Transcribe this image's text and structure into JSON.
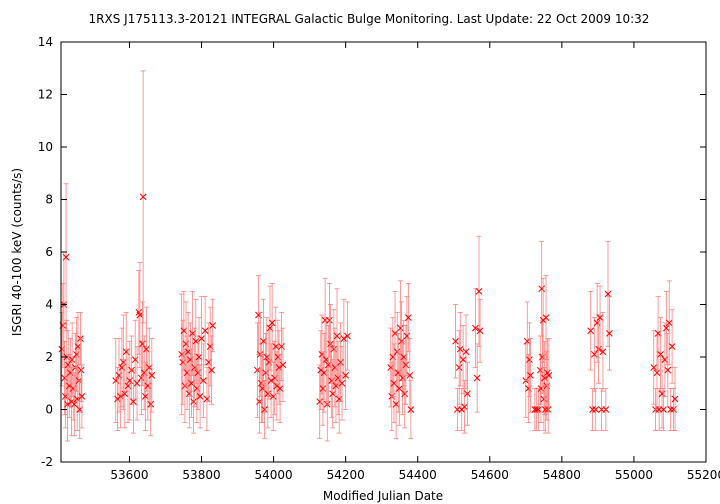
{
  "chart_data": {
    "type": "scatter",
    "title": "1RXS J175113.3-20121   INTEGRAL Galactic Bulge Monitoring.  Last Update: 22 Oct 2009 10:32",
    "xlabel": "Modified Julian Date",
    "ylabel": "ISGRI 40-100 keV (counts/s)",
    "xlim": [
      53410,
      55200
    ],
    "ylim": [
      -2,
      14
    ],
    "xticks": [
      53600,
      53800,
      54000,
      54200,
      54400,
      54600,
      54800,
      55000,
      55200
    ],
    "yticks": [
      -2,
      0,
      2,
      4,
      6,
      8,
      10,
      12,
      14
    ],
    "grid": false,
    "legend": "none",
    "marker": "x",
    "color": "#ff0000",
    "errorbar_color": "#ff8080",
    "series": [
      {
        "points": [
          [
            53412,
            2.3,
            1.4
          ],
          [
            53415,
            3.2,
            1.6
          ],
          [
            53418,
            4.0,
            2.0
          ],
          [
            53420,
            1.2,
            1.4
          ],
          [
            53422,
            0.5,
            1.2
          ],
          [
            53424,
            5.8,
            2.8
          ],
          [
            53426,
            2.0,
            1.4
          ],
          [
            53428,
            0.2,
            1.4
          ],
          [
            53430,
            1.7,
            1.3
          ],
          [
            53433,
            0.9,
            1.2
          ],
          [
            53436,
            1.4,
            1.3
          ],
          [
            53439,
            0.3,
            1.3
          ],
          [
            53441,
            1.9,
            1.4
          ],
          [
            53444,
            0.8,
            1.2
          ],
          [
            53447,
            0.2,
            1.2
          ],
          [
            53450,
            1.6,
            1.3
          ],
          [
            53453,
            2.1,
            1.4
          ],
          [
            53455,
            0.4,
            1.2
          ],
          [
            53457,
            2.4,
            1.3
          ],
          [
            53460,
            1.1,
            1.2
          ],
          [
            53462,
            0.0,
            1.1
          ],
          [
            53464,
            2.7,
            1.0
          ],
          [
            53466,
            1.5,
            1.2
          ],
          [
            53468,
            0.5,
            1.2
          ],
          [
            53562,
            1.1,
            1.6
          ],
          [
            53567,
            0.4,
            1.2
          ],
          [
            53571,
            1.3,
            1.4
          ],
          [
            53575,
            0.5,
            1.2
          ],
          [
            53579,
            1.6,
            1.5
          ],
          [
            53583,
            1.8,
            1.8
          ],
          [
            53587,
            0.6,
            1.3
          ],
          [
            53591,
            2.2,
            1.5
          ],
          [
            53596,
            0.9,
            1.4
          ],
          [
            53601,
            1.1,
            1.5
          ],
          [
            53606,
            1.5,
            1.3
          ],
          [
            53611,
            0.3,
            1.2
          ],
          [
            53616,
            1.9,
            1.5
          ],
          [
            53621,
            1.0,
            1.4
          ],
          [
            53626,
            3.7,
            1.6
          ],
          [
            53629,
            3.6,
            2.0
          ],
          [
            53633,
            1.2,
            1.4
          ],
          [
            53636,
            2.5,
            1.6
          ],
          [
            53638,
            8.1,
            4.8
          ],
          [
            53641,
            1.4,
            1.4
          ],
          [
            53644,
            0.5,
            1.3
          ],
          [
            53647,
            2.3,
            1.6
          ],
          [
            53651,
            0.9,
            1.3
          ],
          [
            53655,
            1.6,
            1.5
          ],
          [
            53659,
            0.2,
            1.2
          ],
          [
            53662,
            1.3,
            1.4
          ],
          [
            53745,
            2.1,
            2.3
          ],
          [
            53748,
            1.8,
            1.6
          ],
          [
            53751,
            3.0,
            1.5
          ],
          [
            53754,
            0.9,
            1.4
          ],
          [
            53757,
            2.5,
            1.6
          ],
          [
            53760,
            1.4,
            1.4
          ],
          [
            53763,
            2.2,
            1.5
          ],
          [
            53766,
            0.6,
            1.3
          ],
          [
            53769,
            1.9,
            1.4
          ],
          [
            53772,
            1.0,
            1.3
          ],
          [
            53775,
            2.9,
            1.6
          ],
          [
            53778,
            0.3,
            1.2
          ],
          [
            53781,
            1.6,
            1.5
          ],
          [
            53784,
            2.6,
            1.6
          ],
          [
            53787,
            0.8,
            1.3
          ],
          [
            53790,
            1.4,
            1.4
          ],
          [
            53793,
            2.0,
            1.5
          ],
          [
            53796,
            0.5,
            1.2
          ],
          [
            53800,
            2.7,
            1.6
          ],
          [
            53805,
            1.1,
            1.4
          ],
          [
            53810,
            3.0,
            1.3
          ],
          [
            53815,
            0.4,
            1.2
          ],
          [
            53820,
            1.8,
            1.5
          ],
          [
            53824,
            2.4,
            1.5
          ],
          [
            53828,
            1.5,
            1.3
          ],
          [
            53831,
            3.2,
            1.0
          ],
          [
            53955,
            1.5,
            1.8
          ],
          [
            53958,
            3.6,
            1.5
          ],
          [
            53961,
            0.3,
            1.2
          ],
          [
            53963,
            2.1,
            1.6
          ],
          [
            53966,
            1.0,
            1.5
          ],
          [
            53969,
            0.8,
            1.3
          ],
          [
            53972,
            2.6,
            1.6
          ],
          [
            53975,
            0.0,
            1.1
          ],
          [
            53978,
            1.4,
            1.5
          ],
          [
            53981,
            2.0,
            1.5
          ],
          [
            53984,
            0.6,
            1.3
          ],
          [
            53987,
            1.8,
            1.4
          ],
          [
            53990,
            3.1,
            1.6
          ],
          [
            53993,
            1.1,
            1.4
          ],
          [
            53996,
            3.3,
            1.5
          ],
          [
            53999,
            0.5,
            1.3
          ],
          [
            54003,
            1.2,
            1.4
          ],
          [
            54006,
            2.4,
            1.5
          ],
          [
            54009,
            0.9,
            1.3
          ],
          [
            54012,
            2.0,
            1.4
          ],
          [
            54015,
            1.6,
            1.4
          ],
          [
            54018,
            0.8,
            1.3
          ],
          [
            54022,
            2.4,
            1.3
          ],
          [
            54026,
            1.7,
            1.4
          ],
          [
            54128,
            0.3,
            1.4
          ],
          [
            54131,
            1.5,
            1.5
          ],
          [
            54134,
            2.1,
            1.5
          ],
          [
            54137,
            0.8,
            1.4
          ],
          [
            54140,
            1.4,
            1.5
          ],
          [
            54143,
            3.4,
            1.6
          ],
          [
            54146,
            1.9,
            1.6
          ],
          [
            54149,
            0.2,
            1.4
          ],
          [
            54152,
            1.7,
            1.5
          ],
          [
            54155,
            3.4,
            1.4
          ],
          [
            54158,
            2.5,
            1.5
          ],
          [
            54161,
            1.1,
            1.4
          ],
          [
            54164,
            0.6,
            1.3
          ],
          [
            54167,
            2.3,
            1.5
          ],
          [
            54170,
            1.6,
            1.5
          ],
          [
            54173,
            0.9,
            1.4
          ],
          [
            54176,
            2.8,
            1.8
          ],
          [
            54179,
            1.2,
            1.4
          ],
          [
            54182,
            0.4,
            1.3
          ],
          [
            54186,
            1.8,
            1.5
          ],
          [
            54190,
            1.0,
            1.4
          ],
          [
            54195,
            2.7,
            1.5
          ],
          [
            54200,
            1.3,
            1.3
          ],
          [
            54205,
            2.8,
            1.3
          ],
          [
            54325,
            1.6,
            1.5
          ],
          [
            54328,
            0.5,
            1.3
          ],
          [
            54331,
            2.0,
            1.5
          ],
          [
            54334,
            1.0,
            1.5
          ],
          [
            54337,
            2.9,
            1.6
          ],
          [
            54340,
            0.2,
            1.3
          ],
          [
            54343,
            2.2,
            1.5
          ],
          [
            54346,
            1.4,
            1.5
          ],
          [
            54349,
            0.8,
            1.4
          ],
          [
            54352,
            3.1,
            1.8
          ],
          [
            54355,
            2.6,
            1.5
          ],
          [
            54358,
            1.2,
            1.4
          ],
          [
            54361,
            2.0,
            1.4
          ],
          [
            54364,
            0.6,
            1.3
          ],
          [
            54367,
            1.7,
            1.5
          ],
          [
            54370,
            2.8,
            1.5
          ],
          [
            54374,
            3.5,
            1.3
          ],
          [
            54378,
            1.3,
            1.4
          ],
          [
            54381,
            0.0,
            1.1
          ],
          [
            54505,
            2.6,
            1.4
          ],
          [
            54510,
            0.0,
            0.8
          ],
          [
            54515,
            1.6,
            1.4
          ],
          [
            54518,
            2.3,
            1.4
          ],
          [
            54522,
            0.0,
            0.8
          ],
          [
            54526,
            1.9,
            1.3
          ],
          [
            54530,
            0.1,
            1.0
          ],
          [
            54534,
            2.2,
            1.4
          ],
          [
            54538,
            0.6,
            1.2
          ],
          [
            54560,
            3.1,
            1.5
          ],
          [
            54565,
            1.2,
            1.3
          ],
          [
            54570,
            4.5,
            2.1
          ],
          [
            54573,
            3.0,
            1.2
          ],
          [
            54700,
            1.1,
            1.4
          ],
          [
            54704,
            2.6,
            1.5
          ],
          [
            54707,
            0.8,
            1.3
          ],
          [
            54710,
            1.9,
            1.4
          ],
          [
            54713,
            1.3,
            1.4
          ],
          [
            54725,
            0.0,
            0.8
          ],
          [
            54730,
            0.0,
            0.8
          ],
          [
            54735,
            0.0,
            0.8
          ],
          [
            54740,
            1.5,
            1.3
          ],
          [
            54742,
            0.8,
            1.3
          ],
          [
            54744,
            4.6,
            1.8
          ],
          [
            54746,
            2.0,
            1.4
          ],
          [
            54748,
            3.4,
            1.6
          ],
          [
            54750,
            0.4,
            1.2
          ],
          [
            54752,
            1.2,
            1.4
          ],
          [
            54754,
            0.0,
            0.9
          ],
          [
            54756,
            3.5,
            1.6
          ],
          [
            54758,
            0.9,
            1.3
          ],
          [
            54760,
            1.4,
            1.3
          ],
          [
            54762,
            0.0,
            0.9
          ],
          [
            54764,
            1.3,
            1.4
          ],
          [
            54880,
            3.0,
            1.5
          ],
          [
            54885,
            0.0,
            0.8
          ],
          [
            54890,
            2.1,
            1.4
          ],
          [
            54894,
            0.0,
            0.8
          ],
          [
            54898,
            3.3,
            1.5
          ],
          [
            54902,
            2.3,
            1.3
          ],
          [
            54906,
            3.5,
            1.2
          ],
          [
            54910,
            0.0,
            0.8
          ],
          [
            54914,
            2.2,
            1.5
          ],
          [
            54922,
            0.0,
            0.8
          ],
          [
            54928,
            4.4,
            2.0
          ],
          [
            54932,
            2.9,
            1.4
          ],
          [
            55055,
            1.6,
            1.4
          ],
          [
            55060,
            0.0,
            0.8
          ],
          [
            55064,
            1.4,
            1.4
          ],
          [
            55067,
            2.9,
            1.4
          ],
          [
            55070,
            0.0,
            0.8
          ],
          [
            55074,
            2.1,
            1.4
          ],
          [
            55078,
            0.6,
            1.3
          ],
          [
            55082,
            0.0,
            0.8
          ],
          [
            55086,
            1.9,
            1.4
          ],
          [
            55090,
            3.1,
            1.4
          ],
          [
            55094,
            1.5,
            1.4
          ],
          [
            55098,
            3.3,
            1.6
          ],
          [
            55102,
            0.0,
            0.8
          ],
          [
            55106,
            2.4,
            1.4
          ],
          [
            55110,
            0.0,
            0.8
          ],
          [
            55114,
            0.4,
            1.2
          ]
        ]
      }
    ]
  }
}
